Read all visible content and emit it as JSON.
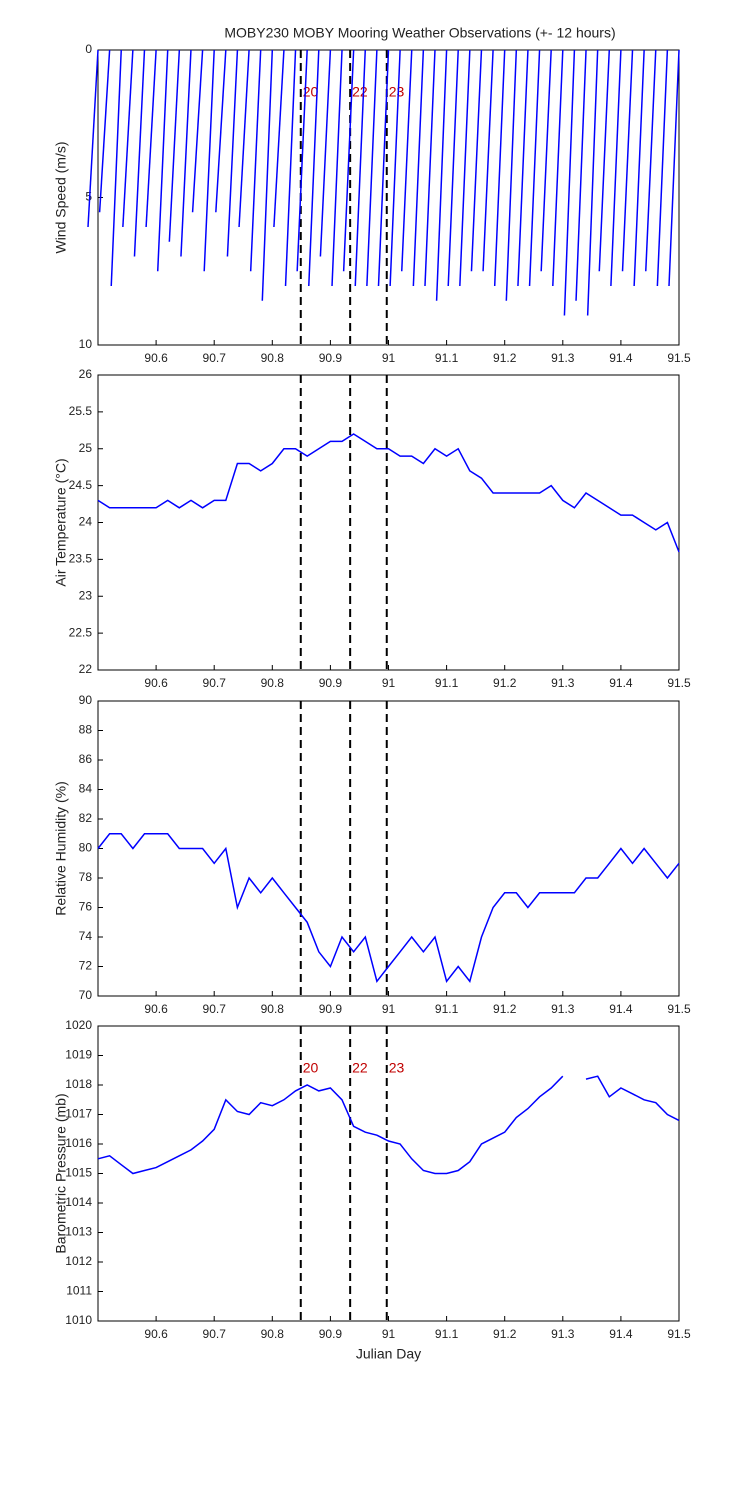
{
  "chart_data": [
    {
      "type": "stick",
      "title": "MOBY230 MOBY Mooring Weather Observations (+- 12 hours)",
      "ylabel": "Wind Speed (m/s)",
      "x": [
        90.5,
        90.52,
        90.54,
        90.56,
        90.58,
        90.6,
        90.62,
        90.64,
        90.66,
        90.68,
        90.7,
        90.72,
        90.74,
        90.76,
        90.78,
        90.8,
        90.82,
        90.84,
        90.86,
        90.88,
        90.9,
        90.92,
        90.94,
        90.96,
        90.98,
        91,
        91.02,
        91.04,
        91.06,
        91.08,
        91.1,
        91.12,
        91.14,
        91.16,
        91.18,
        91.2,
        91.22,
        91.24,
        91.26,
        91.28,
        91.3,
        91.32,
        91.34,
        91.36,
        91.38,
        91.4,
        91.42,
        91.44,
        91.46,
        91.48,
        91.5
      ],
      "values": [
        6,
        5.5,
        8,
        6,
        7,
        6,
        7.5,
        6.5,
        7,
        5.5,
        7.5,
        5.5,
        7,
        6,
        7.5,
        8.5,
        6,
        8,
        7.5,
        8,
        7,
        8,
        7.5,
        8,
        8,
        8,
        8,
        7.5,
        8,
        8,
        8.5,
        8,
        8,
        7.5,
        7.5,
        8,
        8.5,
        8,
        8,
        7.5,
        8,
        9,
        8.5,
        9,
        7.5,
        8,
        7.5,
        8,
        7.5,
        8,
        8
      ],
      "color": "#0000ff",
      "xlim": [
        90.5,
        91.5
      ],
      "xticks": [
        90.6,
        90.7,
        90.8,
        90.9,
        91,
        91.1,
        91.2,
        91.3,
        91.4,
        91.5
      ],
      "ylim": [
        0,
        10
      ],
      "yticks": [
        0,
        5,
        10
      ],
      "y_inverted": true,
      "event_lines": [
        90.849,
        90.934,
        90.997
      ],
      "event_labels": [
        "20",
        "22",
        "23"
      ]
    },
    {
      "type": "line",
      "ylabel": "Air Temperature (°C)",
      "x": [
        90.5,
        90.52,
        90.54,
        90.56,
        90.58,
        90.6,
        90.62,
        90.64,
        90.66,
        90.68,
        90.7,
        90.72,
        90.74,
        90.76,
        90.78,
        90.8,
        90.82,
        90.84,
        90.86,
        90.88,
        90.9,
        90.92,
        90.94,
        90.96,
        90.98,
        91,
        91.02,
        91.04,
        91.06,
        91.08,
        91.1,
        91.12,
        91.14,
        91.16,
        91.18,
        91.2,
        91.22,
        91.24,
        91.26,
        91.28,
        91.3,
        91.32,
        91.34,
        91.36,
        91.38,
        91.4,
        91.42,
        91.44,
        91.46,
        91.48,
        91.5
      ],
      "values": [
        24.3,
        24.2,
        24.2,
        24.2,
        24.2,
        24.2,
        24.3,
        24.2,
        24.3,
        24.2,
        24.3,
        24.3,
        24.8,
        24.8,
        24.7,
        24.8,
        25,
        25,
        24.9,
        25,
        25.1,
        25.1,
        25.2,
        25.1,
        25,
        25,
        24.9,
        24.9,
        24.8,
        25,
        24.9,
        25,
        24.7,
        24.6,
        24.4,
        24.4,
        24.4,
        24.4,
        24.4,
        24.5,
        24.3,
        24.2,
        24.4,
        24.3,
        24.2,
        24.1,
        24.1,
        24,
        23.9,
        24,
        23.6
      ],
      "color": "#0000ff",
      "xlim": [
        90.5,
        91.5
      ],
      "xticks": [
        90.6,
        90.7,
        90.8,
        90.9,
        91,
        91.1,
        91.2,
        91.3,
        91.4,
        91.5
      ],
      "ylim": [
        22,
        26
      ],
      "yticks": [
        22,
        22.5,
        23,
        23.5,
        24,
        24.5,
        25,
        25.5,
        26
      ],
      "event_lines": [
        90.849,
        90.934,
        90.997
      ]
    },
    {
      "type": "line",
      "ylabel": "Relative Humidity (%)",
      "x": [
        90.5,
        90.52,
        90.54,
        90.56,
        90.58,
        90.6,
        90.62,
        90.64,
        90.66,
        90.68,
        90.7,
        90.72,
        90.74,
        90.76,
        90.78,
        90.8,
        90.82,
        90.84,
        90.86,
        90.88,
        90.9,
        90.92,
        90.94,
        90.96,
        90.98,
        91,
        91.02,
        91.04,
        91.06,
        91.08,
        91.1,
        91.12,
        91.14,
        91.16,
        91.18,
        91.2,
        91.22,
        91.24,
        91.26,
        91.28,
        91.3,
        91.32,
        91.34,
        91.36,
        91.38,
        91.4,
        91.42,
        91.44,
        91.46,
        91.48,
        91.5
      ],
      "values": [
        80,
        81,
        81,
        80,
        81,
        81,
        81,
        80,
        80,
        80,
        79,
        80,
        76,
        78,
        77,
        78,
        77,
        76,
        75,
        73,
        72,
        74,
        73,
        74,
        71,
        72,
        73,
        74,
        73,
        74,
        71,
        72,
        71,
        74,
        76,
        77,
        77,
        76,
        77,
        77,
        77,
        77,
        78,
        78,
        79,
        80,
        79,
        80,
        79,
        78,
        79
      ],
      "color": "#0000ff",
      "xlim": [
        90.5,
        91.5
      ],
      "xticks": [
        90.6,
        90.7,
        90.8,
        90.9,
        91,
        91.1,
        91.2,
        91.3,
        91.4,
        91.5
      ],
      "ylim": [
        70,
        90
      ],
      "yticks": [
        70,
        72,
        74,
        76,
        78,
        80,
        82,
        84,
        86,
        88,
        90
      ],
      "event_lines": [
        90.849,
        90.934,
        90.997
      ]
    },
    {
      "type": "line",
      "ylabel": "Barometric Pressure (mb)",
      "xlabel": "Julian Day",
      "x": [
        90.5,
        90.52,
        90.54,
        90.56,
        90.58,
        90.6,
        90.62,
        90.64,
        90.66,
        90.68,
        90.7,
        90.72,
        90.74,
        90.76,
        90.78,
        90.8,
        90.82,
        90.84,
        90.86,
        90.88,
        90.9,
        90.92,
        90.94,
        90.96,
        90.98,
        91,
        91.02,
        91.04,
        91.06,
        91.08,
        91.1,
        91.12,
        91.14,
        91.16,
        91.18,
        91.2,
        91.22,
        91.24,
        91.26,
        91.28,
        91.3,
        91.32,
        91.34,
        91.36,
        91.38,
        91.4,
        91.42,
        91.44,
        91.46,
        91.48,
        91.5
      ],
      "values": [
        1015.5,
        1015.6,
        1015.3,
        1015.0,
        1015.1,
        1015.2,
        1015.4,
        1015.6,
        1015.8,
        1016.1,
        1016.5,
        1017.5,
        1017.1,
        1017.0,
        1017.4,
        1017.3,
        1017.5,
        1017.8,
        1018.0,
        1017.8,
        1017.9,
        1017.5,
        1016.6,
        1016.4,
        1016.3,
        1016.1,
        1016.0,
        1015.5,
        1015.1,
        1015.0,
        1015.0,
        1015.1,
        1015.4,
        1016.0,
        1016.2,
        1016.4,
        1016.9,
        1017.2,
        1017.6,
        1017.9,
        1018.3,
        null,
        1018.2,
        1018.3,
        1017.6,
        1017.9,
        1017.7,
        1017.5,
        1017.4,
        1017.0,
        1016.8
      ],
      "color": "#0000ff",
      "xlim": [
        90.5,
        91.5
      ],
      "xticks": [
        90.6,
        90.7,
        90.8,
        90.9,
        91,
        91.1,
        91.2,
        91.3,
        91.4,
        91.5
      ],
      "ylim": [
        1010,
        1020
      ],
      "yticks": [
        1010,
        1011,
        1012,
        1013,
        1014,
        1015,
        1016,
        1017,
        1018,
        1019,
        1020
      ],
      "event_lines": [
        90.849,
        90.934,
        90.997
      ],
      "event_labels": [
        "20",
        "22",
        "23"
      ]
    }
  ]
}
